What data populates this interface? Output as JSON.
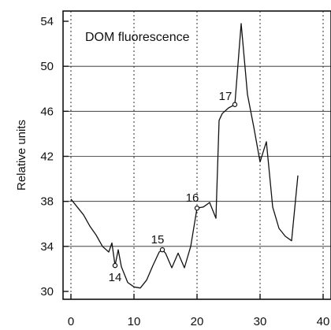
{
  "chart_data": {
    "type": "line",
    "title": "",
    "annotation": "DOM fluorescence",
    "xlabel": "",
    "ylabel": "Relative units",
    "xlim": [
      0,
      40
    ],
    "ylim": [
      30,
      54
    ],
    "x_ticks": [
      0,
      10,
      20,
      30,
      40
    ],
    "y_ticks": [
      30,
      34,
      38,
      42,
      46,
      50,
      54
    ],
    "grid": true,
    "series": [
      {
        "x": [
          0,
          1,
          2,
          3,
          4,
          5,
          6,
          6.5,
          7,
          7.5,
          8,
          9,
          10,
          11,
          12,
          13,
          14,
          14.5,
          15,
          16,
          17,
          18,
          19,
          20,
          21,
          22,
          23,
          23.5,
          24,
          25,
          26,
          27,
          28,
          29,
          30,
          31,
          32,
          33,
          34,
          35,
          36
        ],
        "y": [
          38.2,
          37.5,
          36.8,
          35.8,
          35,
          34,
          33.5,
          34.3,
          32.3,
          33.7,
          32.2,
          30.8,
          30.4,
          30.3,
          31,
          32.3,
          33.5,
          33.7,
          33.4,
          32.1,
          33.4,
          32.1,
          34,
          37.4,
          37.5,
          37.9,
          36.5,
          45.2,
          45.8,
          46.3,
          46.6,
          53.8,
          47.5,
          44.6,
          41.5,
          43.3,
          37.5,
          35.6,
          34.9,
          34.5,
          40.3
        ]
      }
    ],
    "point_labels": [
      {
        "text": "14",
        "x": 7,
        "y": 32.3
      },
      {
        "text": "15",
        "x": 14.5,
        "y": 33.7
      },
      {
        "text": "16",
        "x": 20,
        "y": 37.4
      },
      {
        "text": "17",
        "x": 26,
        "y": 46.6
      }
    ]
  }
}
